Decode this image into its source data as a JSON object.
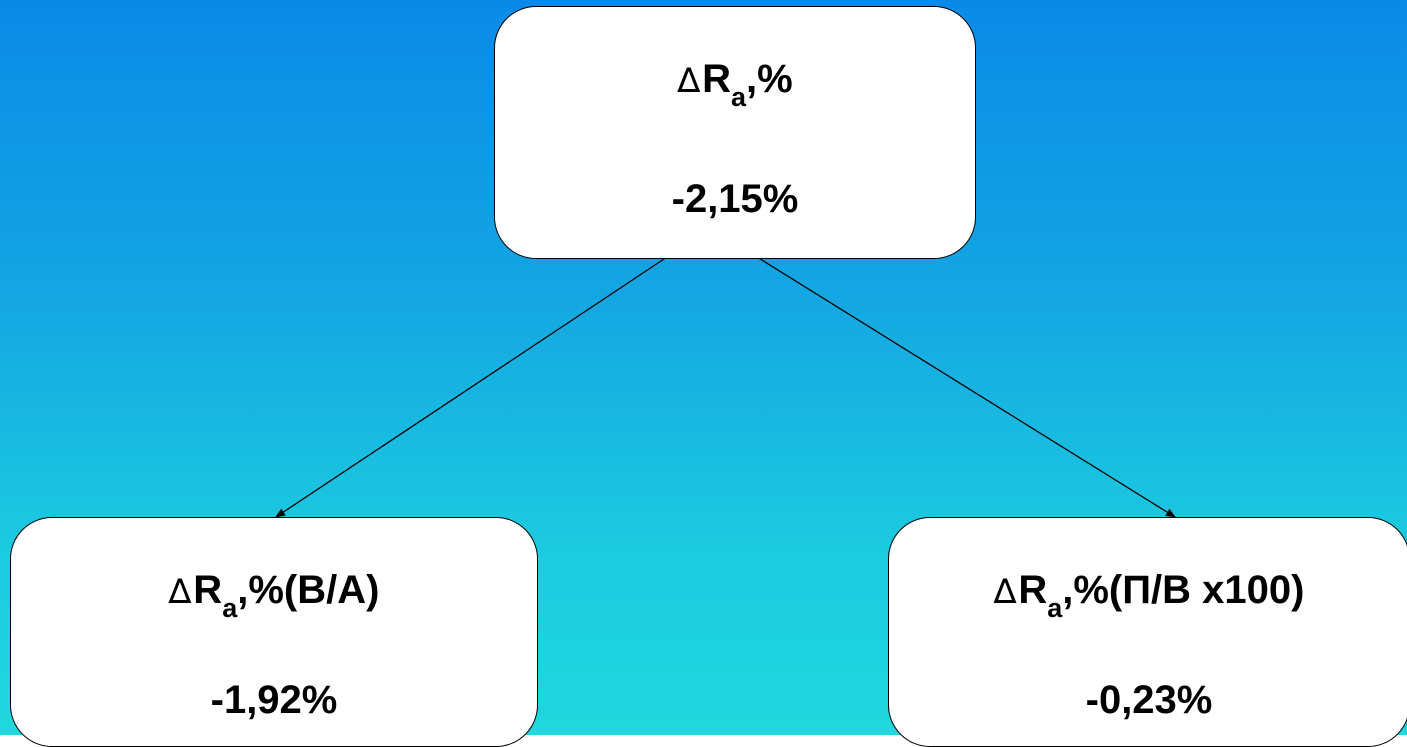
{
  "colors": {
    "background_top": "#0a8ae8",
    "background_bottom": "#20d8de",
    "box_fill": "#ffffff",
    "box_border": "#000000",
    "connector": "#000000"
  },
  "nodes": {
    "top": {
      "delta_symbol": "∆",
      "label_main": "R",
      "label_sub": "a",
      "label_suffix": ",%",
      "value": "-2,15%"
    },
    "left": {
      "delta_symbol": "∆",
      "label_main": "R",
      "label_sub": "a",
      "label_suffix": ",%(В/А)",
      "value": "-1,92%"
    },
    "right": {
      "delta_symbol": "∆",
      "label_main": "R",
      "label_sub": "a",
      "label_suffix": ",%(П/В х100)",
      "value": "-0,23%"
    }
  },
  "edges": [
    {
      "from": "top",
      "to": "left",
      "arrow": "end"
    },
    {
      "from": "top",
      "to": "right",
      "arrow": "end"
    }
  ]
}
